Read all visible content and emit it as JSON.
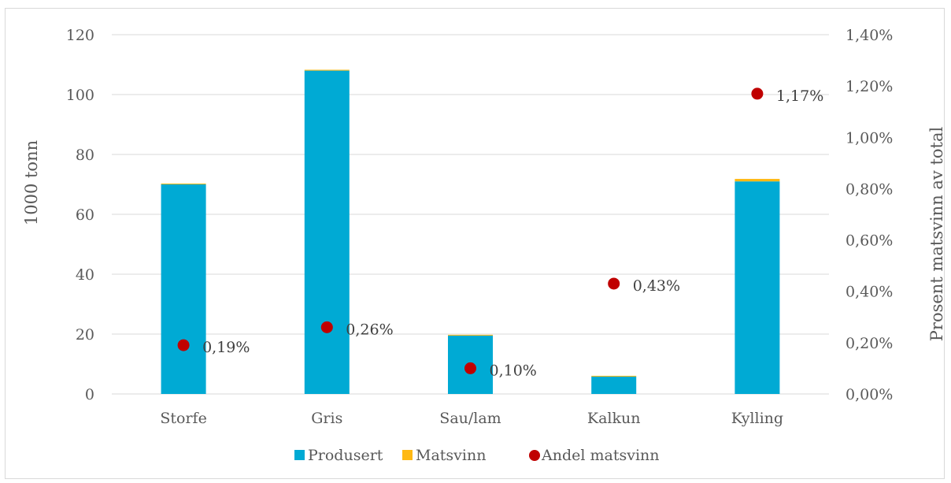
{
  "chart_data": {
    "type": "bar",
    "categories": [
      "Storfe",
      "Gris",
      "Sau/lam",
      "Kalkun",
      "Kylling"
    ],
    "series": [
      {
        "name": "Produsert",
        "type": "stacked-bar",
        "axis": "left",
        "color": "#00aad4",
        "values": [
          70,
          108,
          19.5,
          5.8,
          71
        ]
      },
      {
        "name": "Matsvinn",
        "type": "stacked-bar",
        "axis": "left",
        "color": "#ffb914",
        "values": [
          0.13,
          0.28,
          0.02,
          0.025,
          0.83
        ]
      },
      {
        "name": "Andel matsvinn",
        "type": "scatter",
        "axis": "right",
        "color": "#c00000",
        "values": [
          0.0019,
          0.0026,
          0.001,
          0.0043,
          0.0117
        ],
        "labels": [
          "0,19%",
          "0,26%",
          "0,10%",
          "0,43%",
          "1,17%"
        ]
      }
    ],
    "ylabel": "1000 tonn",
    "y2label": "Prosent matsvinn av total",
    "ylim": [
      0,
      120
    ],
    "y2lim": [
      0,
      0.014
    ],
    "yticks": [
      "0",
      "20",
      "40",
      "60",
      "80",
      "100",
      "120"
    ],
    "y2ticks": [
      "0,00%",
      "0,20%",
      "0,40%",
      "0,60%",
      "0,80%",
      "1,00%",
      "1,20%",
      "1,40%"
    ],
    "grid": true,
    "legend_position": "bottom"
  }
}
